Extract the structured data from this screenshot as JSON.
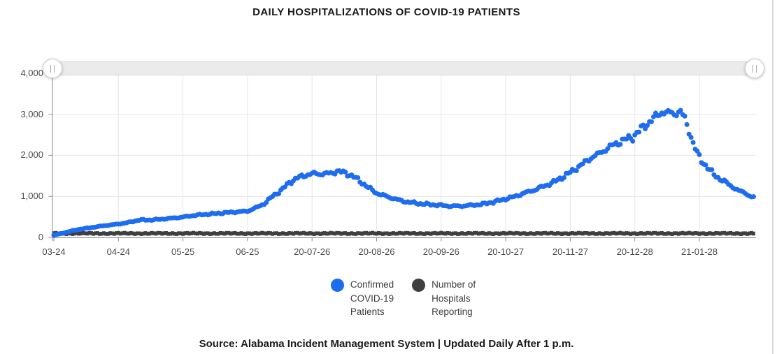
{
  "page": {
    "title": "DAILY HOSPITALIZATIONS OF COVID-19 PATIENTS",
    "source_note": "Source: Alabama Incident Management System | Updated Daily After 1 p.m."
  },
  "colors": {
    "confirmed_blue": "#1e6cf0",
    "hospitals_gray": "#3f3f3f",
    "gridline": "#e5e5e5",
    "axis": "#8c8c8c",
    "tick_text": "#4a4a4a",
    "title_text": "#1a1a1a",
    "slider_track": "#ebebeb"
  },
  "legend": {
    "items": [
      {
        "label": "Confirmed\nCOVID-19\nPatients",
        "color": "#1e6cf0"
      },
      {
        "label": "Number of\nHospitals\nReporting",
        "color": "#3f3f3f"
      }
    ]
  },
  "chart_data": {
    "type": "scatter",
    "title": "DAILY HOSPITALIZATIONS OF COVID-19 PATIENTS",
    "xlabel": "",
    "ylabel": "",
    "x_tick_labels": [
      "03-24",
      "04-24",
      "05-25",
      "06-25",
      "20-07-26",
      "20-08-26",
      "20-09-26",
      "20-10-27",
      "20-11-27",
      "20-12-28",
      "21-01-28"
    ],
    "y_tick_labels": [
      "0",
      "1,000",
      "2,000",
      "3,000",
      "4,000"
    ],
    "y_tick_values": [
      0,
      1000,
      2000,
      3000,
      4000
    ],
    "ylim": [
      0,
      4000
    ],
    "days_per_x_tick": 31,
    "total_days": 336,
    "grid": true,
    "legend_position": "bottom",
    "series": [
      {
        "name": "Confirmed COVID-19 Patients",
        "marker": "circle",
        "color": "#1e6cf0",
        "anchors_day_value": [
          [
            0,
            55
          ],
          [
            4,
            100
          ],
          [
            8,
            150
          ],
          [
            12,
            195
          ],
          [
            16,
            225
          ],
          [
            20,
            255
          ],
          [
            25,
            290
          ],
          [
            31,
            325
          ],
          [
            36,
            365
          ],
          [
            41,
            425
          ],
          [
            46,
            425
          ],
          [
            51,
            440
          ],
          [
            57,
            470
          ],
          [
            62,
            495
          ],
          [
            68,
            540
          ],
          [
            74,
            565
          ],
          [
            80,
            590
          ],
          [
            86,
            615
          ],
          [
            93,
            640
          ],
          [
            97,
            720
          ],
          [
            101,
            820
          ],
          [
            105,
            1000
          ],
          [
            109,
            1140
          ],
          [
            113,
            1330
          ],
          [
            117,
            1450
          ],
          [
            121,
            1520
          ],
          [
            125,
            1555
          ],
          [
            129,
            1545
          ],
          [
            133,
            1560
          ],
          [
            136,
            1615
          ],
          [
            140,
            1570
          ],
          [
            144,
            1480
          ],
          [
            148,
            1330
          ],
          [
            152,
            1180
          ],
          [
            155,
            1080
          ],
          [
            159,
            1010
          ],
          [
            163,
            950
          ],
          [
            167,
            890
          ],
          [
            171,
            855
          ],
          [
            176,
            820
          ],
          [
            181,
            800
          ],
          [
            186,
            780
          ],
          [
            191,
            760
          ],
          [
            196,
            765
          ],
          [
            201,
            785
          ],
          [
            206,
            810
          ],
          [
            211,
            860
          ],
          [
            216,
            925
          ],
          [
            221,
            990
          ],
          [
            226,
            1080
          ],
          [
            231,
            1160
          ],
          [
            236,
            1260
          ],
          [
            241,
            1370
          ],
          [
            246,
            1520
          ],
          [
            250,
            1650
          ],
          [
            254,
            1790
          ],
          [
            258,
            1940
          ],
          [
            262,
            2040
          ],
          [
            266,
            2180
          ],
          [
            270,
            2280
          ],
          [
            274,
            2380
          ],
          [
            278,
            2440
          ],
          [
            282,
            2640
          ],
          [
            286,
            2810
          ],
          [
            289,
            2940
          ],
          [
            292,
            3060
          ],
          [
            295,
            3030
          ],
          [
            298,
            3020
          ],
          [
            301,
            3070
          ],
          [
            303,
            2880
          ],
          [
            305,
            2600
          ],
          [
            307,
            2300
          ],
          [
            309,
            2050
          ],
          [
            311,
            1870
          ],
          [
            314,
            1700
          ],
          [
            317,
            1530
          ],
          [
            320,
            1420
          ],
          [
            323,
            1330
          ],
          [
            326,
            1230
          ],
          [
            329,
            1130
          ],
          [
            332,
            1090
          ],
          [
            334,
            1010
          ],
          [
            336,
            975
          ]
        ]
      },
      {
        "name": "Number of Hospitals Reporting",
        "marker": "square",
        "color": "#3f3f3f",
        "base_value": 100,
        "value_range": [
          85,
          115
        ]
      }
    ]
  }
}
